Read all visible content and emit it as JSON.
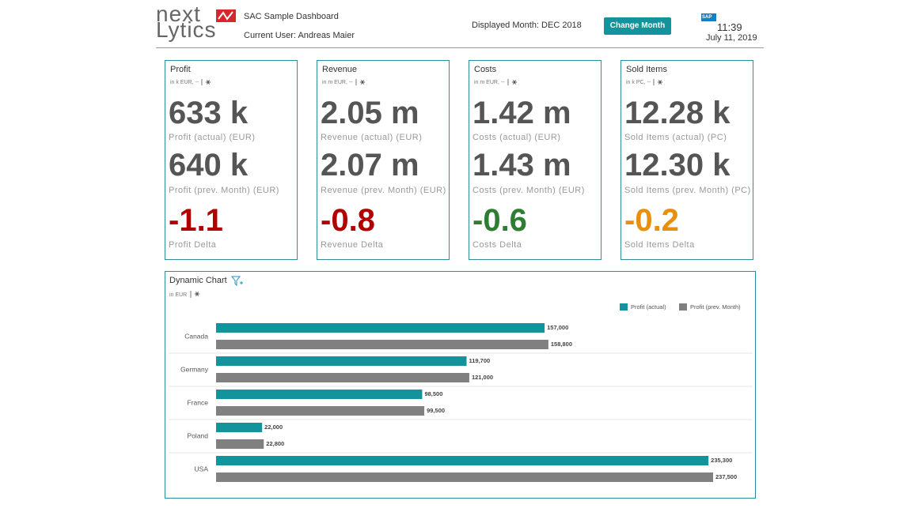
{
  "header": {
    "logo_top": "next",
    "logo_bottom": "Lytics",
    "title": "SAC Sample Dashboard",
    "user": "Current User: Andreas Maier",
    "month": "Displayed Month: DEC 2018",
    "button": "Change Month",
    "sap": "SAP",
    "time": "11:39",
    "date": "July 11, 2019"
  },
  "tiles": [
    {
      "title": "Profit",
      "unit": "in k EUR, --",
      "actual": "633 k",
      "actual_label": "Profit (actual) (EUR)",
      "prev": "640 k",
      "prev_label": "Profit (prev. Month) (EUR)",
      "delta": "-1.1",
      "delta_label": "Profit Delta",
      "delta_color": "#b00000"
    },
    {
      "title": "Revenue",
      "unit": "in m EUR, --",
      "actual": "2.05 m",
      "actual_label": "Revenue (actual) (EUR)",
      "prev": "2.07 m",
      "prev_label": "Revenue (prev. Month) (EUR)",
      "delta": "-0.8",
      "delta_label": "Revenue Delta",
      "delta_color": "#b00000"
    },
    {
      "title": "Costs",
      "unit": "in m EUR, --",
      "actual": "1.42 m",
      "actual_label": "Costs (actual) (EUR)",
      "prev": "1.43 m",
      "prev_label": "Costs (prev. Month) (EUR)",
      "delta": "-0.6",
      "delta_label": "Costs Delta",
      "delta_color": "#2e7d32"
    },
    {
      "title": "Sold Items",
      "unit": "in k PC, --",
      "actual": "12.28 k",
      "actual_label": "Sold Items (actual) (PC)",
      "prev": "12.30 k",
      "prev_label": "Sold Items (prev. Month) (PC)",
      "delta": "-0.2",
      "delta_label": "Sold Items Delta",
      "delta_color": "#e8900c"
    }
  ],
  "chart_data": {
    "type": "bar",
    "orientation": "horizontal",
    "title": "Dynamic Chart",
    "subtitle": "in EUR",
    "categories": [
      "Canada",
      "Germany",
      "France",
      "Poland",
      "USA"
    ],
    "series": [
      {
        "name": "Profit (actual)",
        "color": "#13939c",
        "values": [
          157000,
          119700,
          98500,
          22000,
          235300
        ],
        "value_labels": [
          "157,000",
          "119,700",
          "98,500",
          "22,000",
          "235,300"
        ]
      },
      {
        "name": "Profit (prev. Month)",
        "color": "#808080",
        "values": [
          158800,
          121000,
          99500,
          22800,
          237500
        ],
        "value_labels": [
          "158,800",
          "121,000",
          "99,500",
          "22,800",
          "237,500"
        ]
      }
    ]
  }
}
